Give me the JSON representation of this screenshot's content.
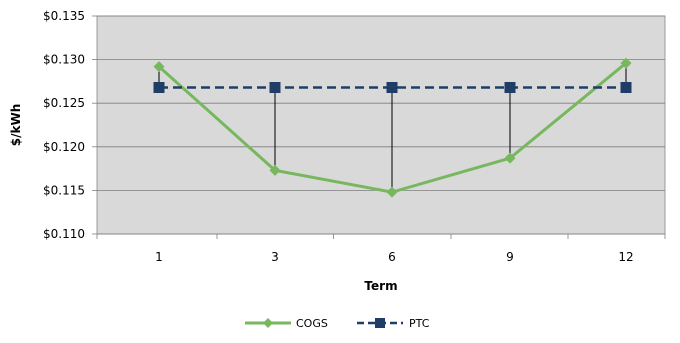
{
  "chart_data": {
    "type": "line",
    "title": "",
    "xlabel": "Term",
    "ylabel": "$/kWh",
    "categories": [
      "1",
      "3",
      "6",
      "9",
      "12"
    ],
    "y_tick_labels": [
      "$0.110",
      "$0.115",
      "$0.120",
      "$0.125",
      "$0.130",
      "$0.135"
    ],
    "y_ticks": [
      0.11,
      0.115,
      0.12,
      0.125,
      0.13,
      0.135
    ],
    "ylim": [
      0.11,
      0.135
    ],
    "grid": true,
    "plot_background": "#d9d9d9",
    "legend_position": "bottom",
    "series": [
      {
        "name": "COGS",
        "values": [
          0.1292,
          0.1173,
          0.1148,
          0.1187,
          0.1296
        ],
        "color": "#77b75e",
        "marker": "diamond",
        "line": "solid"
      },
      {
        "name": "PTC",
        "values": [
          0.1268,
          0.1268,
          0.1268,
          0.1268,
          0.1268
        ],
        "color": "#1f3d66",
        "marker": "square",
        "line": "dashed"
      }
    ],
    "difference_lines": true
  }
}
